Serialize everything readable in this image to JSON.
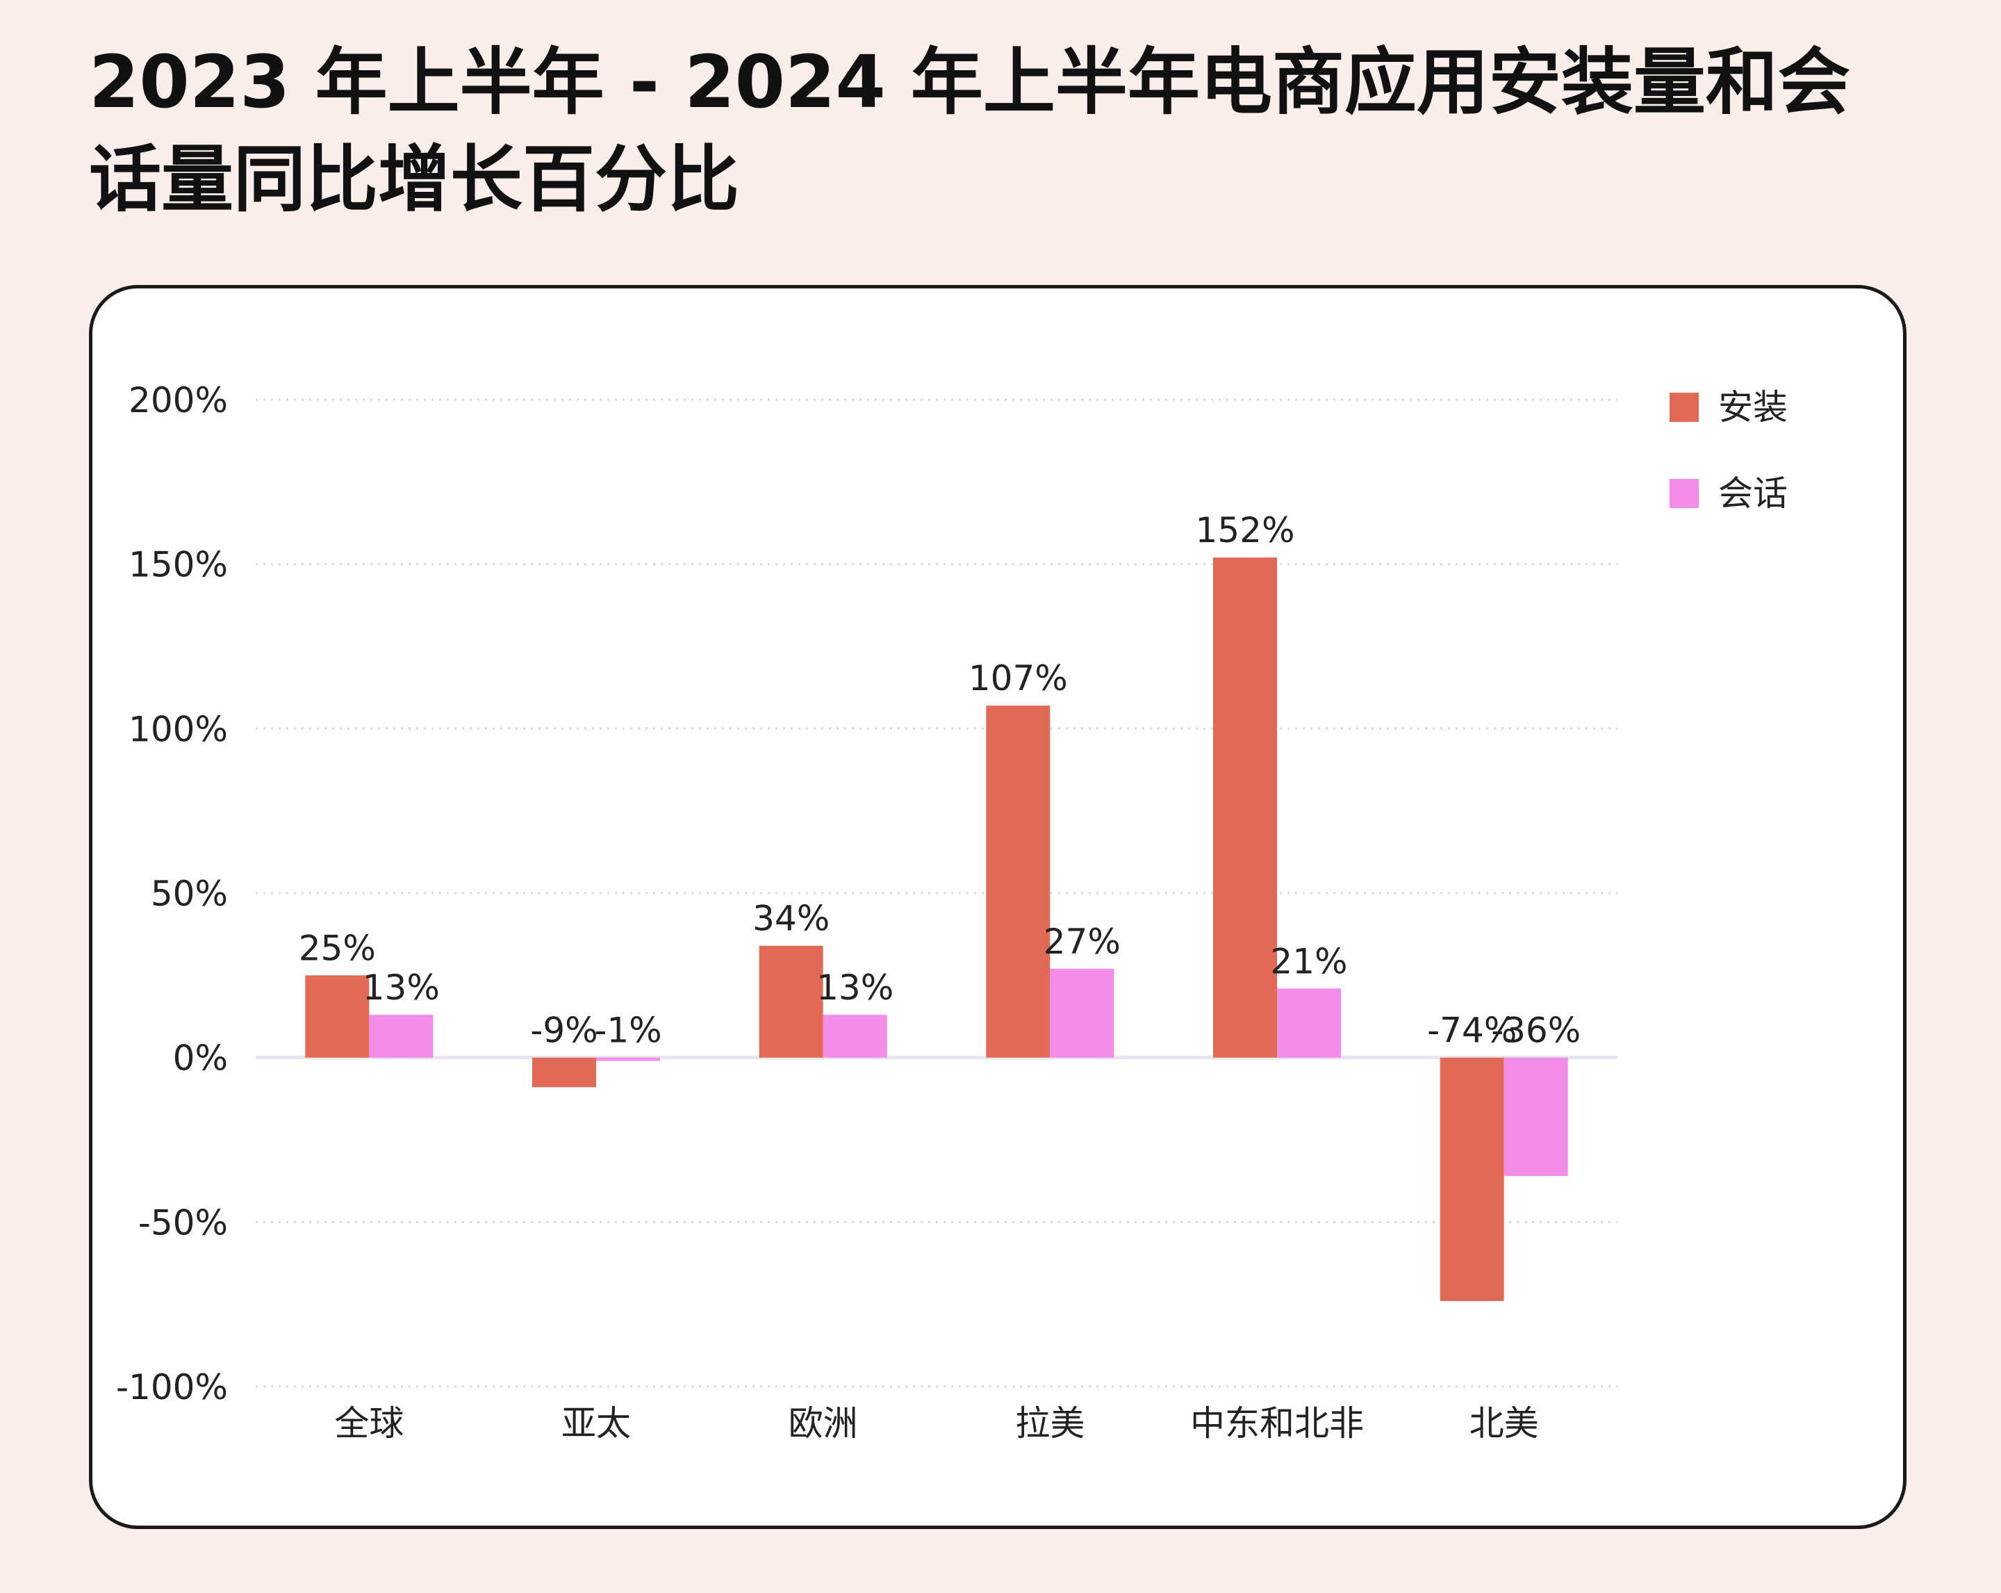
{
  "title": "2023 年上半年 - 2024 年上半年电商应用安装量和会话量同比增长百分比",
  "chart_data": {
    "type": "bar",
    "categories": [
      "全球",
      "亚太",
      "欧洲",
      "拉美",
      "中东和北非",
      "北美"
    ],
    "series": [
      {
        "name": "安装",
        "color": "#e06a55",
        "values": [
          25,
          -9,
          34,
          107,
          152,
          -74
        ],
        "labels": [
          "25%",
          "-9%",
          "34%",
          "107%",
          "152%",
          "-74%"
        ]
      },
      {
        "name": "会话",
        "color": "#f48de8",
        "values": [
          13,
          -1,
          13,
          27,
          21,
          -36
        ],
        "labels": [
          "13%",
          "-1%",
          "13%",
          "27%",
          "21%",
          "-36%"
        ]
      }
    ],
    "y_ticks": [
      200,
      150,
      100,
      50,
      0,
      -50,
      -100
    ],
    "y_tick_labels": [
      "200%",
      "150%",
      "100%",
      "50%",
      "0%",
      "-50%",
      "-100%"
    ],
    "ylim": [
      -100,
      200
    ],
    "grid": "horizontal-dotted",
    "legend_position": "top-right"
  }
}
